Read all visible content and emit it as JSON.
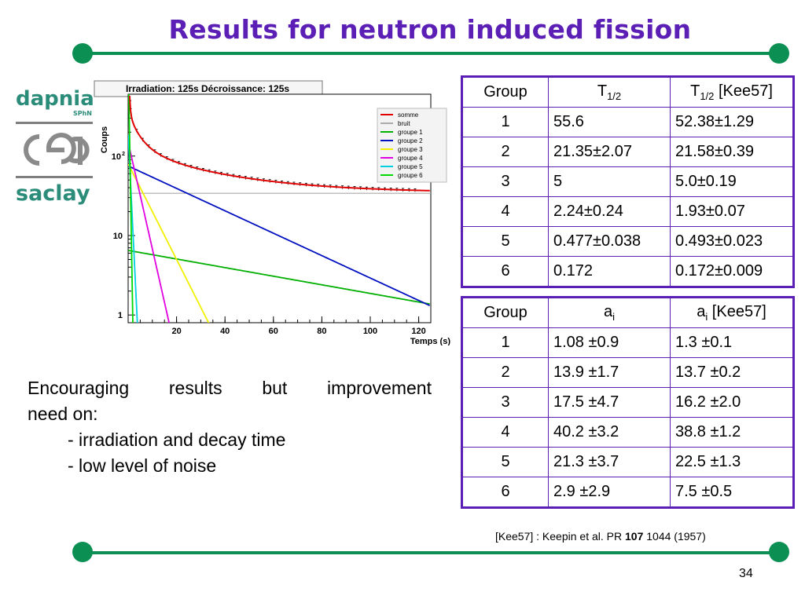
{
  "title": "Results for neutron induced fission",
  "logos": [
    "dapnia",
    "SPhN",
    "saclay"
  ],
  "chart_data": {
    "type": "line",
    "title": "Irradiation: 125s Décroissance: 125s",
    "xlabel": "Temps (s)",
    "ylabel": "Coups",
    "y_scale": "log",
    "xlim": [
      0,
      125
    ],
    "ylim": [
      0.8,
      600
    ],
    "x_ticks": [
      "20",
      "40",
      "60",
      "80",
      "100",
      "120"
    ],
    "legend_position": "top-right",
    "series": [
      {
        "name": "somme",
        "color": "#e00000"
      },
      {
        "name": "bruit",
        "color": "#aaaaaa"
      },
      {
        "name": "groupe 1",
        "color": "#00b000"
      },
      {
        "name": "groupe 2",
        "color": "#0010c0"
      },
      {
        "name": "groupe 3",
        "color": "#f0f000"
      },
      {
        "name": "groupe 4",
        "color": "#e000e0"
      },
      {
        "name": "groupe 5",
        "color": "#00d0e0"
      },
      {
        "name": "groupe 6",
        "color": "#00d800"
      }
    ],
    "model": {
      "noise": 34,
      "components": [
        {
          "series": "groupe 1",
          "a0": 6.5,
          "t_half": 55.6
        },
        {
          "series": "groupe 2",
          "a0": 75,
          "t_half": 21.35
        },
        {
          "series": "groupe 3",
          "a0": 80,
          "t_half": 5
        },
        {
          "series": "groupe 4",
          "a0": 150,
          "t_half": 2.24
        },
        {
          "series": "groupe 5",
          "a0": 200,
          "t_half": 0.477
        },
        {
          "series": "groupe 6",
          "a0": 2000,
          "t_half": 0.172
        }
      ]
    }
  },
  "table_t": {
    "headers": [
      "Group",
      "T",
      "1/2",
      "T",
      "1/2",
      " [Kee57]"
    ],
    "rows": [
      [
        "1",
        "55.6",
        "52.38±1.29"
      ],
      [
        "2",
        "21.35±2.07",
        "21.58±0.39"
      ],
      [
        "3",
        "5",
        "5.0±0.19"
      ],
      [
        "4",
        "2.24±0.24",
        "1.93±0.07"
      ],
      [
        "5",
        "0.477±0.038",
        "0.493±0.023"
      ],
      [
        "6",
        "0.172",
        "0.172±0.009"
      ]
    ]
  },
  "table_a": {
    "headers": [
      "Group",
      "a",
      "i",
      "a",
      "i",
      " [Kee57]"
    ],
    "rows": [
      [
        "1",
        "1.08 ±0.9",
        "1.3 ±0.1"
      ],
      [
        "2",
        "13.9 ±1.7",
        "13.7 ±0.2"
      ],
      [
        "3",
        "17.5 ±4.7",
        "16.2 ±2.0"
      ],
      [
        "4",
        "40.2 ±3.2",
        "38.8 ±1.2"
      ],
      [
        "5",
        "21.3 ±3.7",
        "22.5 ±1.3"
      ],
      [
        "6",
        "2.9 ±2.9",
        "7.5 ±0.5"
      ]
    ]
  },
  "text": {
    "line1": "Encouraging results but improvement",
    "line2": "need on:",
    "bullet1": "- irradiation and decay time",
    "bullet2": "- low level of noise"
  },
  "reference": {
    "pre": "[Kee57] : Keepin et al. PR ",
    "bold": "107",
    "post": " 1044 (1957)"
  },
  "page_number": "34"
}
